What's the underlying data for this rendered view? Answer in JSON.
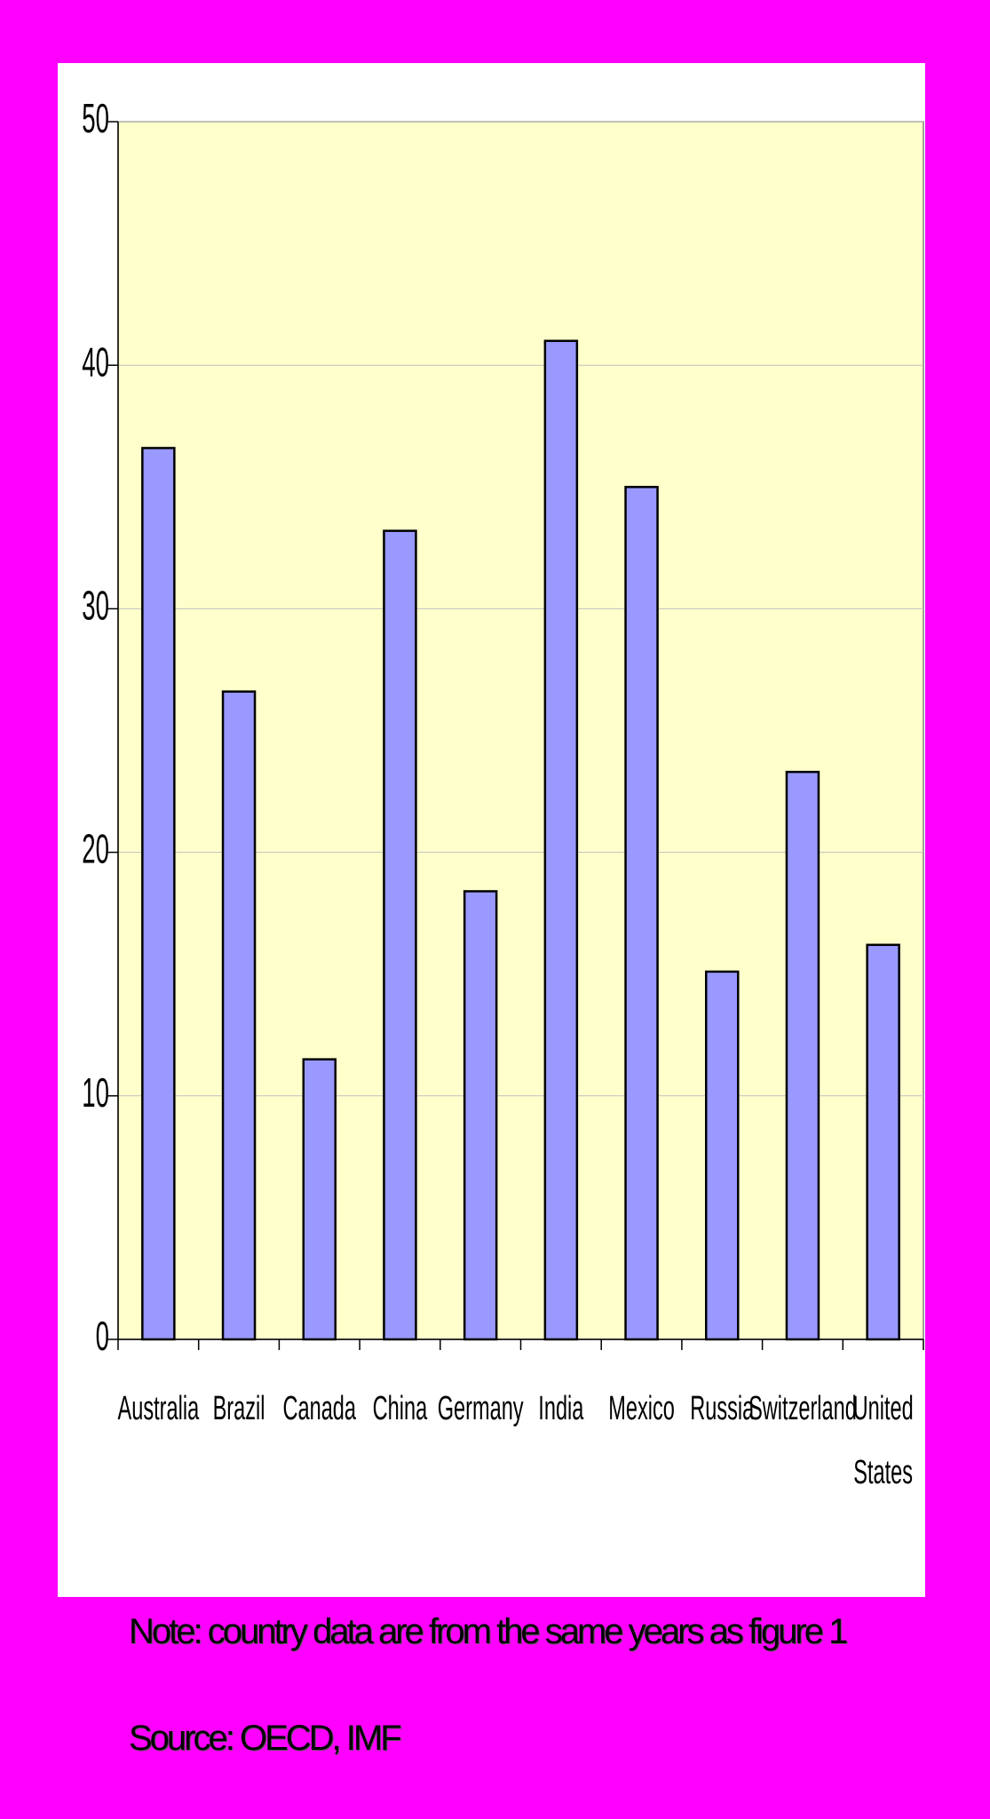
{
  "chart_data": {
    "type": "bar",
    "categories": [
      "Australia",
      "Brazil",
      "Canada",
      "China",
      "Germany",
      "India",
      "Mexico",
      "Russia",
      "Switzerland",
      "United States"
    ],
    "category_lines": [
      [
        "Australia"
      ],
      [
        "Brazil"
      ],
      [
        "Canada"
      ],
      [
        "China"
      ],
      [
        "Germany"
      ],
      [
        "India"
      ],
      [
        "Mexico"
      ],
      [
        "Russia"
      ],
      [
        "Switzerland"
      ],
      [
        "United",
        "States"
      ]
    ],
    "values": [
      36.6,
      26.6,
      11.5,
      33.2,
      18.4,
      41.0,
      35.0,
      15.1,
      23.3,
      16.2
    ],
    "ylim": [
      0,
      50
    ],
    "yticks": [
      0,
      10,
      20,
      30,
      40,
      50
    ],
    "grid": true,
    "legend": "none",
    "colors": {
      "bar_fill": "#9999ff",
      "bar_stroke": "#000000",
      "plot_bg": "#ffffcc",
      "gridline": "#c0c0c0",
      "page_bg": "#ff00ff"
    }
  },
  "notes": {
    "note": "Note: country data are from the same years as figure 1",
    "source": "Source: OECD, IMF"
  }
}
